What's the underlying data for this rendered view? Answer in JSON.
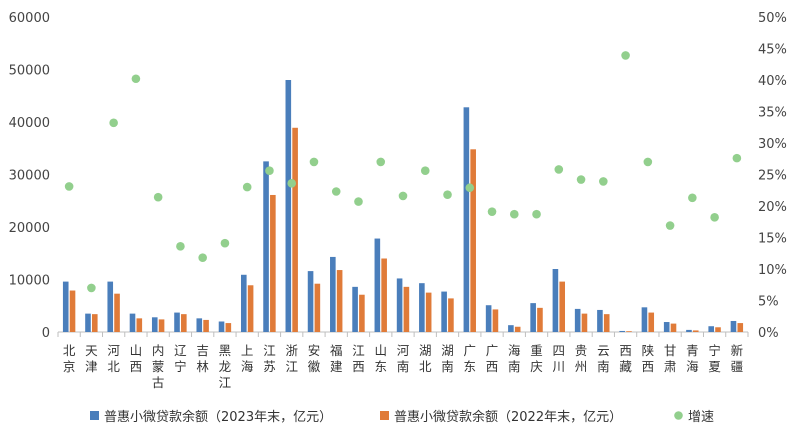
{
  "chart_data": {
    "type": "bar",
    "categories": [
      "北京",
      "天津",
      "河北",
      "山西",
      "内蒙古",
      "辽宁",
      "吉林",
      "黑龙江",
      "上海",
      "江苏",
      "浙江",
      "安徽",
      "福建",
      "江西",
      "山东",
      "河南",
      "湖北",
      "湖南",
      "广东",
      "广西",
      "海南",
      "重庆",
      "四川",
      "贵州",
      "云南",
      "西藏",
      "陕西",
      "甘肃",
      "青海",
      "宁夏",
      "新疆"
    ],
    "series": [
      {
        "name": "普惠小微贷款余额（2023年末，亿元）",
        "kind": "bar",
        "axis": "left",
        "color": "#4a7ebb",
        "values": [
          9600,
          3500,
          9600,
          3500,
          2800,
          3700,
          2600,
          2000,
          10900,
          32500,
          48000,
          11600,
          14300,
          8600,
          17800,
          10200,
          9300,
          7700,
          42800,
          5100,
          1300,
          5500,
          12000,
          4400,
          4200,
          200,
          4700,
          1900,
          400,
          1100,
          2100
        ]
      },
      {
        "name": "普惠小微贷款余额（2022年末，亿元）",
        "kind": "bar",
        "axis": "left",
        "color": "#e07b39",
        "values": [
          7900,
          3400,
          7300,
          2600,
          2400,
          3400,
          2300,
          1700,
          8900,
          26100,
          38900,
          9200,
          11800,
          7100,
          14000,
          8600,
          7500,
          6400,
          34800,
          4300,
          1000,
          4600,
          9600,
          3500,
          3400,
          150,
          3700,
          1600,
          300,
          900,
          1700
        ]
      },
      {
        "name": "增速",
        "kind": "scatter",
        "axis": "right",
        "color": "#92cf8d",
        "values": [
          23.1,
          7.0,
          33.2,
          40.2,
          21.4,
          13.6,
          11.8,
          14.1,
          23.0,
          25.6,
          23.6,
          27.0,
          22.3,
          20.7,
          27.0,
          21.6,
          25.6,
          21.8,
          22.9,
          19.1,
          18.7,
          18.7,
          25.8,
          24.2,
          23.9,
          43.9,
          27.0,
          16.9,
          21.3,
          18.2,
          27.6
        ]
      }
    ],
    "y_left": {
      "ylim": [
        0,
        60000
      ],
      "ticks": [
        "0",
        "10000",
        "20000",
        "30000",
        "40000",
        "50000",
        "60000"
      ]
    },
    "y_right": {
      "ylim": [
        0,
        50
      ],
      "ticks": [
        "0%",
        "5%",
        "10%",
        "15%",
        "20%",
        "25%",
        "30%",
        "35%",
        "40%",
        "45%",
        "50%"
      ]
    },
    "grid": false,
    "legend_position": "bottom",
    "title": "",
    "xlabel": "",
    "ylabel": ""
  }
}
